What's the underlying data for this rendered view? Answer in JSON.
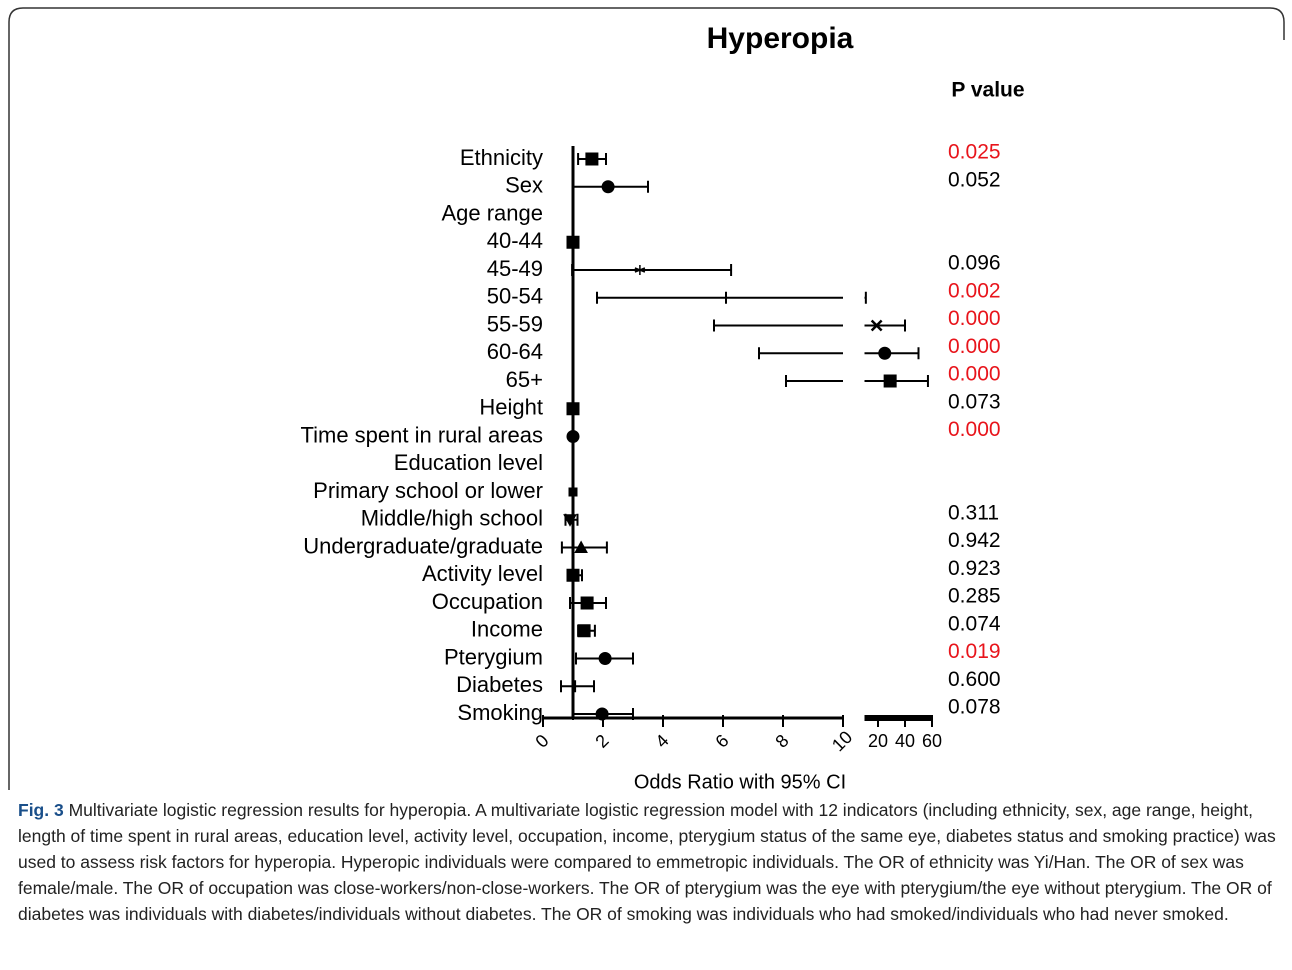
{
  "chart_data": {
    "type": "forest",
    "title": "Hyperopia",
    "p_header": "P value",
    "x_label": "Odds Ratio with 95% CI",
    "categories": [
      "Ethnicity",
      "Sex",
      "Age range",
      "40-44",
      "45-49",
      "50-54",
      "55-59",
      "60-64",
      "65+",
      "Height",
      "Time spent in rural areas",
      "Education level",
      "Primary school or lower",
      "Middle/high school",
      "Undergraduate/graduate",
      "Activity level",
      "Occupation",
      "Income",
      "Pterygium",
      "Diabetes",
      "Smoking"
    ],
    "values": [
      1.63,
      2.17,
      null,
      1,
      3.23,
      6.1,
      19,
      25,
      29,
      1.0,
      1.0,
      null,
      1,
      0.9,
      1.27,
      1.0,
      1.47,
      1.37,
      2.07,
      1.07,
      1.97
    ],
    "ci_lower": [
      1.17,
      1.0,
      null,
      null,
      0.97,
      1.8,
      5.7,
      7.2,
      8.1,
      0.98,
      0.98,
      null,
      null,
      0.75,
      0.63,
      0.85,
      0.9,
      1.17,
      1.1,
      0.6,
      1.0
    ],
    "ci_upper": [
      2.1,
      3.5,
      null,
      null,
      6.27,
      11,
      40,
      50,
      57,
      1.02,
      1.02,
      null,
      null,
      1.15,
      2.13,
      1.3,
      2.1,
      1.73,
      3.0,
      1.7,
      3.0
    ],
    "markers": [
      "square",
      "circle",
      null,
      "square",
      "star",
      "tick",
      "cross",
      "circle",
      "square",
      "square",
      "circle",
      null,
      "small-square",
      "down-triangle",
      "triangle",
      "square",
      "square",
      "square",
      "circle",
      "tick",
      "circle"
    ],
    "p_values": [
      "0.025",
      "0.052",
      null,
      null,
      "0.096",
      "0.002",
      "0.000",
      "0.000",
      "0.000",
      "0.073",
      "0.000",
      null,
      null,
      "0.311",
      "0.942",
      "0.923",
      "0.285",
      "0.074",
      "0.019",
      "0.600",
      "0.078"
    ],
    "significant": [
      true,
      false,
      null,
      null,
      false,
      true,
      true,
      true,
      true,
      false,
      true,
      null,
      null,
      false,
      false,
      false,
      false,
      false,
      true,
      false,
      false
    ],
    "significant_color": "#e8141b",
    "color": "#000000",
    "reference": 1,
    "x_segments": [
      {
        "xlim": [
          0,
          10
        ],
        "xticks": [
          0,
          2,
          4,
          6,
          8,
          10
        ]
      },
      {
        "xlim": [
          10,
          60
        ],
        "xticks": [
          20,
          40,
          60
        ]
      }
    ]
  },
  "caption": {
    "label": "Fig. 3",
    "text": "Multivariate logistic regression results for hyperopia. A multivariate logistic regression model with 12 indicators (including ethnicity, sex, age range, height, length of time spent in rural areas, education level, activity level, occupation, income, pterygium status of the same eye, diabetes status and smoking practice) was used to assess risk factors for hyperopia. Hyperopic individuals were compared to emmetropic individuals. The OR of ethnicity was Yi/Han. The OR of sex was female/male. The OR of occupation was close-workers/non-close-workers. The OR of pterygium was the eye with pterygium/the eye without pterygium. The OR of diabetes was individuals with diabetes/individuals without diabetes. The OR of smoking was individuals who had smoked/individuals who had never smoked."
  }
}
